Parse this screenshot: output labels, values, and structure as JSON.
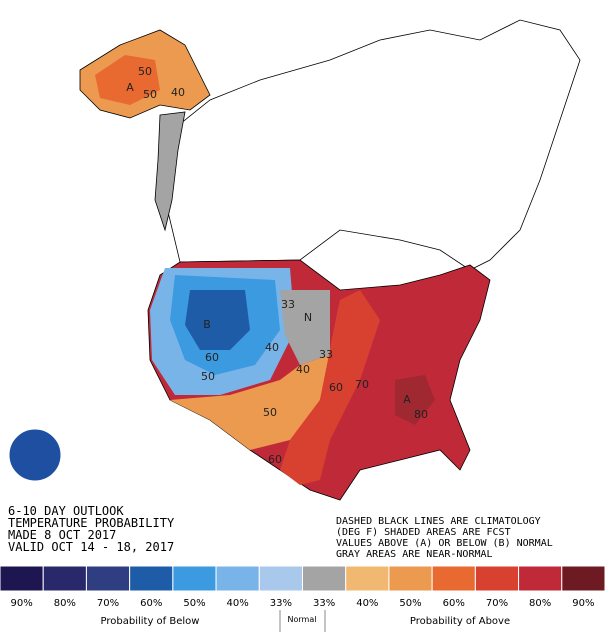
{
  "header": {
    "lines": [
      "6-10 DAY OUTLOOK",
      "TEMPERATURE PROBABILITY",
      "MADE  8 OCT 2017",
      "VALID  OCT 14 - 18, 2017"
    ]
  },
  "notes": [
    "DASHED BLACK LINES ARE CLIMATOLOGY",
    "(DEG F) SHADED AREAS ARE FCST",
    "VALUES ABOVE (A) OR BELOW (B) NORMAL",
    "GRAY AREAS ARE NEAR-NORMAL"
  ],
  "map_labels": [
    "A",
    "50",
    "50",
    "40",
    "B",
    "60",
    "50",
    "40",
    "33",
    "N",
    "33",
    "40",
    "50",
    "60",
    "60",
    "70",
    "A",
    "80"
  ],
  "legend": {
    "items": [
      {
        "color": "#1e1650",
        "label": "90%"
      },
      {
        "color": "#28286a",
        "label": "80%"
      },
      {
        "color": "#2e3e80",
        "label": "70%"
      },
      {
        "color": "#1f5ca8",
        "label": "60%"
      },
      {
        "color": "#3c9ae0",
        "label": "50%"
      },
      {
        "color": "#78b4e8",
        "label": "40%"
      },
      {
        "color": "#a8c8ec",
        "label": "33%"
      },
      {
        "color": "#a4a4a4",
        "label": "33%"
      },
      {
        "color": "#f0b870",
        "label": "40%"
      },
      {
        "color": "#ec9a50",
        "label": "50%"
      },
      {
        "color": "#e86a30",
        "label": "60%"
      },
      {
        "color": "#d84030",
        "label": "70%"
      },
      {
        "color": "#c02a38",
        "label": "80%"
      },
      {
        "color": "#6e1a22",
        "label": "90%"
      }
    ],
    "groups": [
      "Probability of Below",
      "Normal",
      "Probability of Above"
    ]
  }
}
